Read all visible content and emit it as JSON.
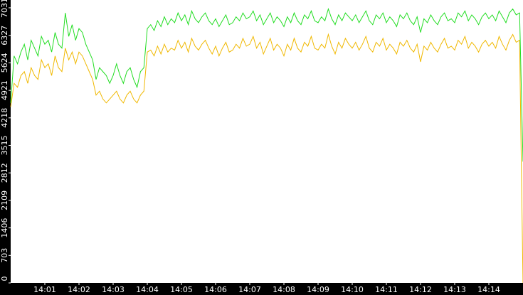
{
  "chart_data": {
    "type": "line",
    "x": [
      840,
      840.1,
      840.2,
      840.3,
      840.4,
      840.5,
      840.6,
      840.7,
      840.8,
      840.9,
      841,
      841.1,
      841.2,
      841.3,
      841.4,
      841.5,
      841.6,
      841.7,
      841.8,
      841.9,
      842,
      842.1,
      842.2,
      842.3,
      842.4,
      842.5,
      842.6,
      842.7,
      842.8,
      842.9,
      843,
      843.1,
      843.2,
      843.3,
      843.4,
      843.5,
      843.6,
      843.7,
      843.8,
      843.9,
      844,
      844.1,
      844.2,
      844.3,
      844.4,
      844.5,
      844.6,
      844.7,
      844.8,
      844.9,
      845,
      845.1,
      845.2,
      845.3,
      845.4,
      845.5,
      845.6,
      845.7,
      845.8,
      845.9,
      846,
      846.1,
      846.2,
      846.3,
      846.4,
      846.5,
      846.6,
      846.7,
      846.8,
      846.9,
      847,
      847.1,
      847.2,
      847.3,
      847.4,
      847.5,
      847.6,
      847.7,
      847.8,
      847.9,
      848,
      848.1,
      848.2,
      848.3,
      848.4,
      848.5,
      848.6,
      848.7,
      848.8,
      848.9,
      849,
      849.1,
      849.2,
      849.3,
      849.4,
      849.5,
      849.6,
      849.7,
      849.8,
      849.9,
      850,
      850.1,
      850.2,
      850.3,
      850.4,
      850.5,
      850.6,
      850.7,
      850.8,
      850.9,
      851,
      851.1,
      851.2,
      851.3,
      851.4,
      851.5,
      851.6,
      851.7,
      851.8,
      851.9,
      852,
      852.1,
      852.2,
      852.3,
      852.4,
      852.5,
      852.6,
      852.7,
      852.8,
      852.9,
      853,
      853.1,
      853.2,
      853.3,
      853.4,
      853.5,
      853.6,
      853.7,
      853.8,
      853.9,
      854,
      854.1,
      854.2,
      854.3,
      854.4,
      854.5,
      854.6,
      854.7,
      854.8,
      854.9,
      855
    ],
    "series": [
      {
        "color": "#f0b800",
        "values": [
          4500,
          5100,
          5000,
          5300,
          5400,
          5100,
          5500,
          5300,
          5200,
          5700,
          5500,
          5600,
          5300,
          5800,
          5500,
          5400,
          6000,
          5700,
          5900,
          5600,
          5900,
          5800,
          5600,
          5400,
          5200,
          4800,
          4900,
          4700,
          4600,
          4700,
          4800,
          4900,
          4700,
          4600,
          4800,
          4900,
          4700,
          4600,
          4800,
          4900,
          5900,
          5950,
          5800,
          6050,
          5850,
          6100,
          5900,
          6000,
          5950,
          6200,
          6000,
          6150,
          5900,
          6250,
          6050,
          5950,
          6100,
          6200,
          6000,
          5850,
          6050,
          5800,
          6000,
          6150,
          5900,
          5950,
          6100,
          6000,
          6250,
          6050,
          6100,
          6300,
          6000,
          6150,
          5850,
          6050,
          6250,
          5950,
          6100,
          6000,
          5800,
          6100,
          5950,
          6250,
          6000,
          5900,
          6150,
          6050,
          6300,
          6000,
          5950,
          6100,
          6000,
          6350,
          6050,
          5850,
          6150,
          6000,
          6250,
          6100,
          6000,
          6150,
          5950,
          6100,
          6300,
          6000,
          5900,
          6150,
          6050,
          6250,
          5950,
          6100,
          6000,
          5850,
          6150,
          6050,
          6200,
          6000,
          5900,
          6100,
          5650,
          6050,
          5950,
          6150,
          6000,
          5900,
          6100,
          6250,
          6000,
          6050,
          5950,
          6200,
          6100,
          6300,
          6000,
          6150,
          6050,
          5900,
          6100,
          6200,
          6050,
          6150,
          6000,
          6300,
          6100,
          5950,
          6200,
          6350,
          6150,
          6200,
          0
        ]
      },
      {
        "color": "#22dd22",
        "values": [
          4600,
          5800,
          5600,
          5900,
          6100,
          5700,
          6200,
          6000,
          5800,
          6300,
          6100,
          6200,
          5900,
          6400,
          6100,
          6000,
          6900,
          6300,
          6600,
          6200,
          6500,
          6400,
          6100,
          5900,
          5700,
          5200,
          5500,
          5400,
          5300,
          5100,
          5300,
          5600,
          5300,
          5100,
          5400,
          5500,
          5200,
          5000,
          5400,
          5500,
          6500,
          6600,
          6450,
          6700,
          6550,
          6800,
          6600,
          6750,
          6650,
          6900,
          6700,
          6850,
          6600,
          6950,
          6750,
          6650,
          6800,
          6900,
          6700,
          6600,
          6750,
          6550,
          6700,
          6850,
          6600,
          6650,
          6800,
          6700,
          6900,
          6750,
          6800,
          6950,
          6700,
          6850,
          6600,
          6750,
          6900,
          6650,
          6800,
          6700,
          6550,
          6800,
          6650,
          6900,
          6700,
          6600,
          6850,
          6750,
          6950,
          6700,
          6650,
          6800,
          6700,
          7000,
          6750,
          6600,
          6850,
          6700,
          6900,
          6800,
          6700,
          6850,
          6650,
          6800,
          6950,
          6700,
          6600,
          6850,
          6750,
          6900,
          6650,
          6800,
          6700,
          6550,
          6850,
          6750,
          6900,
          6700,
          6600,
          6800,
          6400,
          6750,
          6650,
          6850,
          6700,
          6600,
          6800,
          6900,
          6700,
          6750,
          6650,
          6900,
          6800,
          6950,
          6700,
          6850,
          6750,
          6600,
          6800,
          6900,
          6750,
          6850,
          6700,
          6950,
          6800,
          6650,
          6900,
          7000,
          6850,
          6900,
          3100
        ]
      }
    ],
    "xlim": [
      840,
      855
    ],
    "xticks": [
      {
        "value": 841,
        "label": "14:01"
      },
      {
        "value": 842,
        "label": "14:02"
      },
      {
        "value": 843,
        "label": "14:03"
      },
      {
        "value": 844,
        "label": "14:04"
      },
      {
        "value": 845,
        "label": "14:05"
      },
      {
        "value": 846,
        "label": "14:06"
      },
      {
        "value": 847,
        "label": "14:07"
      },
      {
        "value": 848,
        "label": "14:08"
      },
      {
        "value": 849,
        "label": "14:09"
      },
      {
        "value": 850,
        "label": "14:10"
      },
      {
        "value": 851,
        "label": "14:11"
      },
      {
        "value": 852,
        "label": "14:12"
      },
      {
        "value": 853,
        "label": "14:13"
      },
      {
        "value": 854,
        "label": "14:14"
      }
    ],
    "ylim": [
      0,
      7230
    ],
    "yticks": [
      0,
      703,
      1406,
      2109,
      2812,
      3515,
      4218,
      4921,
      5624,
      6327,
      7031
    ]
  }
}
